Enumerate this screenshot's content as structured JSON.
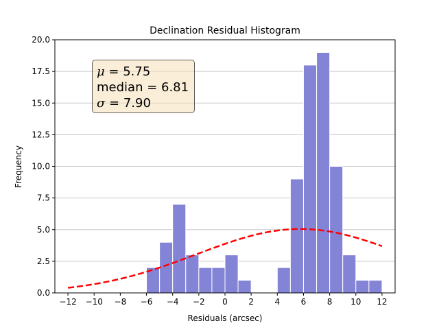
{
  "chart_data": {
    "type": "bar",
    "title": "Declination Residual Histogram",
    "xlabel": "Residuals (arcsec)",
    "ylabel": "Frequency",
    "xlim": [
      -13.0,
      13.0
    ],
    "ylim": [
      0,
      20
    ],
    "xticks": [
      -12,
      -10,
      -8,
      -6,
      -4,
      -2,
      0,
      2,
      4,
      6,
      8,
      10,
      12
    ],
    "xtick_labels": [
      "−12",
      "−10",
      "−8",
      "−6",
      "−4",
      "−2",
      "0",
      "2",
      "4",
      "6",
      "8",
      "10",
      "12"
    ],
    "yticks": [
      0,
      2.5,
      5,
      7.5,
      10,
      12.5,
      15,
      17.5,
      20
    ],
    "ytick_labels": [
      "0.0",
      "2.5",
      "5.0",
      "7.5",
      "10.0",
      "12.5",
      "15.0",
      "17.5",
      "20.0"
    ],
    "grid": "horizontal",
    "bin_width": 1,
    "bins": [
      {
        "left": -6,
        "count": 2
      },
      {
        "left": -5,
        "count": 4
      },
      {
        "left": -4,
        "count": 7
      },
      {
        "left": -3,
        "count": 3
      },
      {
        "left": -2,
        "count": 2
      },
      {
        "left": -1,
        "count": 2
      },
      {
        "left": 0,
        "count": 3
      },
      {
        "left": 1,
        "count": 1
      },
      {
        "left": 2,
        "count": 0
      },
      {
        "left": 3,
        "count": 0
      },
      {
        "left": 4,
        "count": 2
      },
      {
        "left": 5,
        "count": 9
      },
      {
        "left": 6,
        "count": 18
      },
      {
        "left": 7,
        "count": 19
      },
      {
        "left": 8,
        "count": 10
      },
      {
        "left": 9,
        "count": 3
      },
      {
        "left": 10,
        "count": 1
      },
      {
        "left": 11,
        "count": 1
      }
    ],
    "fit_curve": {
      "style": "dashed",
      "mean": 5.75,
      "sigma": 7.9,
      "x_range": [
        -12,
        12
      ],
      "peak": 5.05
    },
    "annotation": {
      "mu_symbol": "μ",
      "mu_text": " = 5.75",
      "median_text": "median = 6.81",
      "sigma_symbol": "σ",
      "sigma_text": " = 7.90"
    },
    "colors": {
      "bars": "#8484d6",
      "bar_edge": "#ffffff",
      "curve": "#ff0000",
      "grid": "#c8c8c8",
      "stats_box": "#f5deb3"
    }
  }
}
